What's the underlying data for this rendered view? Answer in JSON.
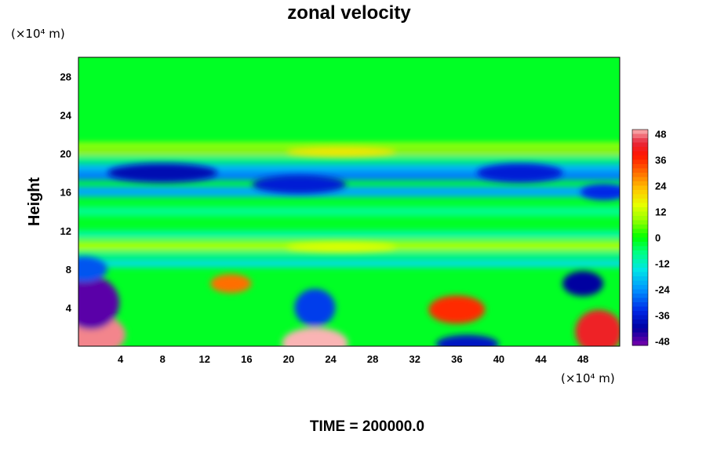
{
  "chart_data": {
    "type": "heatmap",
    "title": "zonal velocity",
    "ylabel": "Height",
    "x_unit": "(×10⁴ m)",
    "y_unit": "(×10⁴ m)",
    "xlim": [
      0,
      51.5
    ],
    "ylim": [
      0,
      30
    ],
    "x_ticks": [
      "4",
      "8",
      "12",
      "16",
      "20",
      "24",
      "28",
      "32",
      "36",
      "40",
      "44",
      "48"
    ],
    "y_ticks": [
      "4",
      "8",
      "12",
      "16",
      "20",
      "24",
      "28"
    ],
    "colorbar": {
      "min": -50,
      "max": 50,
      "ticks": [
        "48",
        "36",
        "24",
        "12",
        "0",
        "-12",
        "-24",
        "-36",
        "-48"
      ],
      "low_color": "#7a00a8",
      "high_color": "#f7aaaa"
    },
    "features": [
      {
        "x": 1.5,
        "y": 1.2,
        "value": 48
      },
      {
        "x": 22.5,
        "y": 0.3,
        "value": 50
      },
      {
        "x": 49.5,
        "y": 1.5,
        "value": 42
      },
      {
        "x": 36,
        "y": 3.8,
        "value": 36
      },
      {
        "x": 14.5,
        "y": 6.5,
        "value": 30
      },
      {
        "x": 1.2,
        "y": 4.5,
        "value": -48
      },
      {
        "x": 48,
        "y": 6.5,
        "value": -42
      },
      {
        "x": 22.5,
        "y": 4,
        "value": -32
      },
      {
        "x": 37,
        "y": 0.2,
        "value": -38
      },
      {
        "x": 0.5,
        "y": 8,
        "value": -30
      },
      {
        "x": 8,
        "y": 18,
        "value": -40
      },
      {
        "x": 21,
        "y": 16.8,
        "value": -36
      },
      {
        "x": 42,
        "y": 18,
        "value": -36
      },
      {
        "x": 50,
        "y": 16,
        "value": -34
      },
      {
        "x": 25,
        "y": 20.2,
        "value": 18
      },
      {
        "x": 25,
        "y": 10.3,
        "value": 14
      }
    ],
    "background_value": -2
  },
  "footer": "TIME = 200000.0",
  "colors": {
    "background": "#00ff00"
  }
}
